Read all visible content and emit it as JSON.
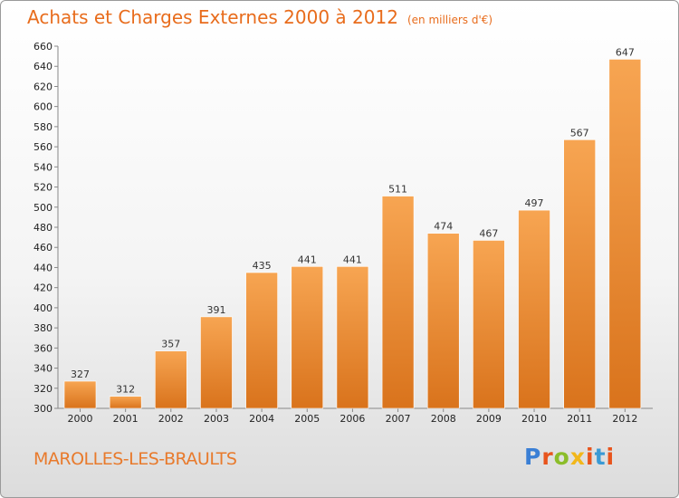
{
  "header": {
    "title": "Achats et Charges Externes 2000 à 2012",
    "unit": "(en milliers d'€)"
  },
  "footer": {
    "commune": "MAROLLES-LES-BRAULTS",
    "logo": "Proxiti",
    "logo_colors": [
      "#3a7fd5",
      "#e8541c",
      "#8bbd2a",
      "#f2b71a",
      "#e8541c",
      "#3a9ad5",
      "#e8541c"
    ]
  },
  "chart_data": {
    "type": "bar",
    "categories": [
      "2000",
      "2001",
      "2002",
      "2003",
      "2004",
      "2005",
      "2006",
      "2007",
      "2008",
      "2009",
      "2010",
      "2011",
      "2012"
    ],
    "values": [
      327,
      312,
      357,
      391,
      435,
      441,
      441,
      511,
      474,
      467,
      497,
      567,
      647
    ],
    "ylim": [
      300,
      660
    ],
    "yticks": [
      300,
      320,
      340,
      360,
      380,
      400,
      420,
      440,
      460,
      480,
      500,
      520,
      540,
      560,
      580,
      600,
      620,
      640,
      660
    ],
    "grid": false,
    "bar_color": "#f0923c"
  }
}
